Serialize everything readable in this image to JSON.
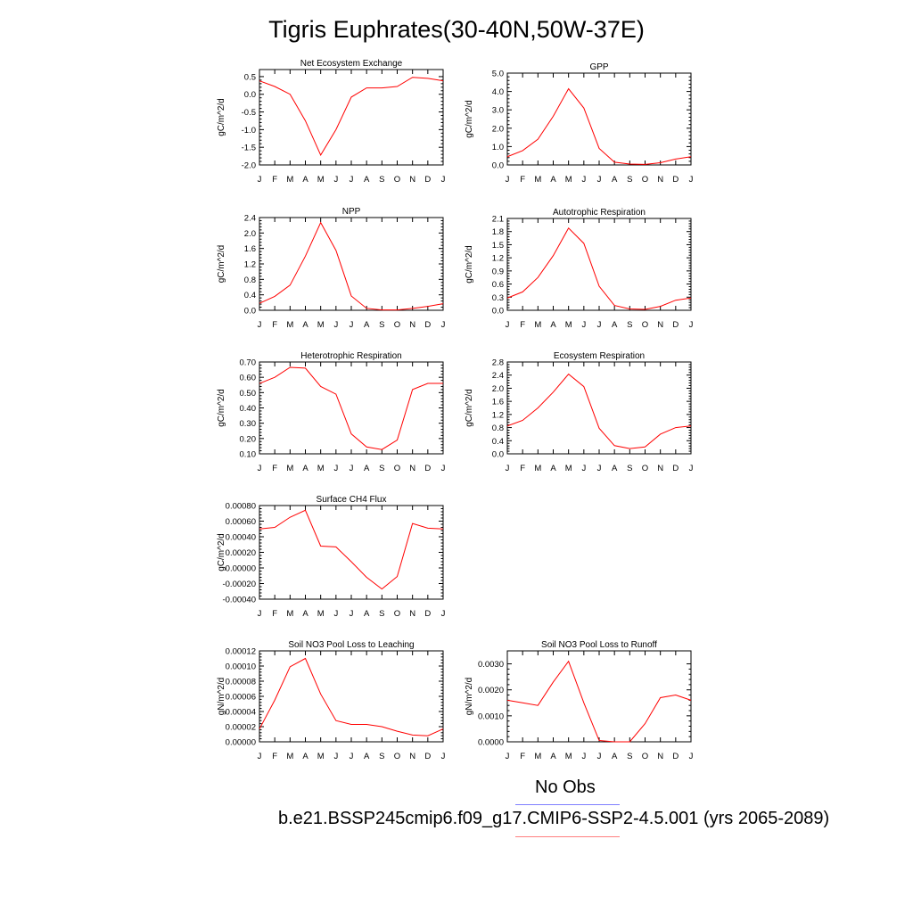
{
  "title": "Tigris Euphrates(30-40N,50W-37E)",
  "legend": {
    "obs_label": "No Obs",
    "obs_color": "#8080ff",
    "model_label": "b.e21.BSSP245cmip6.f09_g17.CMIP6-SSP2-4.5.001 (yrs 2065-2089)",
    "model_color": "#ff8080"
  },
  "line_color": "#ff0000",
  "chart_data": [
    {
      "type": "line",
      "title": "Net Ecosystem Exchange",
      "ylabel": "gC/m^2/d",
      "categories": [
        "J",
        "F",
        "M",
        "A",
        "M",
        "J",
        "J",
        "A",
        "S",
        "O",
        "N",
        "D",
        "J"
      ],
      "ylim": [
        -2.0,
        0.7
      ],
      "yticks": [
        "0.5",
        "0.0",
        "-0.5",
        "-1.0",
        "-1.5",
        "-2.0"
      ],
      "ytick_values": [
        0.5,
        0.0,
        -0.5,
        -1.0,
        -1.5,
        -2.0
      ],
      "values": [
        0.38,
        0.22,
        0.0,
        -0.75,
        -1.72,
        -1.0,
        -0.08,
        0.18,
        0.18,
        0.22,
        0.48,
        0.45,
        0.38
      ]
    },
    {
      "type": "line",
      "title": "GPP",
      "ylabel": "gC/m^2/d",
      "categories": [
        "J",
        "F",
        "M",
        "A",
        "M",
        "J",
        "J",
        "A",
        "S",
        "O",
        "N",
        "D",
        "J"
      ],
      "ylim": [
        0.0,
        5.0
      ],
      "yticks": [
        "5.0",
        "4.0",
        "3.0",
        "2.0",
        "1.0",
        "0.0"
      ],
      "ytick_values": [
        5.0,
        4.0,
        3.0,
        2.0,
        1.0,
        0.0
      ],
      "values": [
        0.45,
        0.78,
        1.4,
        2.65,
        4.15,
        3.1,
        0.9,
        0.15,
        0.05,
        0.03,
        0.12,
        0.32,
        0.45
      ]
    },
    {
      "type": "line",
      "title": "NPP",
      "ylabel": "gC/m^2/d",
      "categories": [
        "J",
        "F",
        "M",
        "A",
        "M",
        "J",
        "J",
        "A",
        "S",
        "O",
        "N",
        "D",
        "J"
      ],
      "ylim": [
        0.0,
        2.4
      ],
      "yticks": [
        "2.4",
        "2.0",
        "1.6",
        "1.2",
        "0.8",
        "0.4",
        "0.0"
      ],
      "ytick_values": [
        2.4,
        2.0,
        1.6,
        1.2,
        0.8,
        0.4,
        0.0
      ],
      "values": [
        0.18,
        0.36,
        0.65,
        1.4,
        2.27,
        1.55,
        0.37,
        0.05,
        0.01,
        0.01,
        0.05,
        0.1,
        0.17
      ]
    },
    {
      "type": "line",
      "title": "Autotrophic Respiration",
      "ylabel": "gC/m^2/d",
      "categories": [
        "J",
        "F",
        "M",
        "A",
        "M",
        "J",
        "J",
        "A",
        "S",
        "O",
        "N",
        "D",
        "J"
      ],
      "ylim": [
        0.0,
        2.1
      ],
      "yticks": [
        "2.1",
        "1.8",
        "1.5",
        "1.2",
        "0.9",
        "0.6",
        "0.3",
        "0.0"
      ],
      "ytick_values": [
        2.1,
        1.8,
        1.5,
        1.2,
        0.9,
        0.6,
        0.3,
        0.0
      ],
      "values": [
        0.28,
        0.42,
        0.75,
        1.25,
        1.88,
        1.53,
        0.55,
        0.11,
        0.03,
        0.02,
        0.09,
        0.23,
        0.28
      ]
    },
    {
      "type": "line",
      "title": "Heterotrophic Respiration",
      "ylabel": "gC/m^2/d",
      "categories": [
        "J",
        "F",
        "M",
        "A",
        "M",
        "J",
        "J",
        "A",
        "S",
        "O",
        "N",
        "D",
        "J"
      ],
      "ylim": [
        0.1,
        0.7
      ],
      "yticks": [
        "0.70",
        "0.60",
        "0.50",
        "0.40",
        "0.30",
        "0.20",
        "0.10"
      ],
      "ytick_values": [
        0.7,
        0.6,
        0.5,
        0.4,
        0.3,
        0.2,
        0.1
      ],
      "values": [
        0.56,
        0.6,
        0.665,
        0.66,
        0.54,
        0.49,
        0.23,
        0.145,
        0.128,
        0.19,
        0.52,
        0.56,
        0.56
      ]
    },
    {
      "type": "line",
      "title": "Ecosystem Respiration",
      "ylabel": "gC/m^2/d",
      "categories": [
        "J",
        "F",
        "M",
        "A",
        "M",
        "J",
        "J",
        "A",
        "S",
        "O",
        "N",
        "D",
        "J"
      ],
      "ylim": [
        0.0,
        2.8
      ],
      "yticks": [
        "2.8",
        "2.4",
        "2.0",
        "1.6",
        "1.2",
        "0.8",
        "0.4",
        "0.0"
      ],
      "ytick_values": [
        2.8,
        2.4,
        2.0,
        1.6,
        1.2,
        0.8,
        0.4,
        0.0
      ],
      "values": [
        0.85,
        1.02,
        1.4,
        1.88,
        2.43,
        2.05,
        0.78,
        0.25,
        0.16,
        0.21,
        0.6,
        0.8,
        0.85
      ]
    },
    {
      "type": "line",
      "title": "Surface CH4 Flux",
      "ylabel": "gC/m^2/d",
      "categories": [
        "J",
        "F",
        "M",
        "A",
        "M",
        "J",
        "J",
        "A",
        "S",
        "O",
        "N",
        "D",
        "J"
      ],
      "ylim": [
        -0.0004,
        0.0008
      ],
      "yticks": [
        "0.00080",
        "0.00060",
        "0.00040",
        "0.00020",
        "0.00000",
        "-0.00020",
        "-0.00040"
      ],
      "ytick_values": [
        0.0008,
        0.0006,
        0.0004,
        0.0002,
        0.0,
        -0.0002,
        -0.0004
      ],
      "values": [
        0.0005,
        0.00052,
        0.00065,
        0.00074,
        0.00028,
        0.00027,
        8e-05,
        -0.00012,
        -0.00027,
        -0.00011,
        0.00057,
        0.00051,
        0.0005
      ]
    },
    {
      "type": "line",
      "title": "Soil NO3 Pool Loss to Leaching",
      "ylabel": "gN/m^2/d",
      "categories": [
        "J",
        "F",
        "M",
        "A",
        "M",
        "J",
        "J",
        "A",
        "S",
        "O",
        "N",
        "D",
        "J"
      ],
      "ylim": [
        0.0,
        0.00012
      ],
      "yticks": [
        "0.00012",
        "0.00010",
        "0.00008",
        "0.00006",
        "0.00004",
        "0.00002",
        "0.00000"
      ],
      "ytick_values": [
        0.00012,
        0.0001,
        8e-05,
        6e-05,
        4e-05,
        2e-05,
        0.0
      ],
      "values": [
        1.7e-05,
        5.5e-05,
        9.9e-05,
        0.00011,
        6.3e-05,
        2.8e-05,
        2.3e-05,
        2.3e-05,
        2e-05,
        1.4e-05,
        9e-06,
        8e-06,
        1.7e-05
      ]
    },
    {
      "type": "line",
      "title": "Soil NO3 Pool Loss to Runoff",
      "ylabel": "gN/m^2/d",
      "categories": [
        "J",
        "F",
        "M",
        "A",
        "M",
        "J",
        "J",
        "A",
        "S",
        "O",
        "N",
        "D",
        "J"
      ],
      "ylim": [
        0.0,
        0.0035
      ],
      "yticks": [
        "0.0030",
        "0.0020",
        "0.0010",
        "0.0000"
      ],
      "ytick_values": [
        0.003,
        0.002,
        0.001,
        0.0
      ],
      "values": [
        0.0016,
        0.0015,
        0.0014,
        0.0023,
        0.0031,
        0.0015,
        5e-05,
        0.0,
        0.0,
        0.0007,
        0.0017,
        0.0018,
        0.0016
      ]
    }
  ]
}
